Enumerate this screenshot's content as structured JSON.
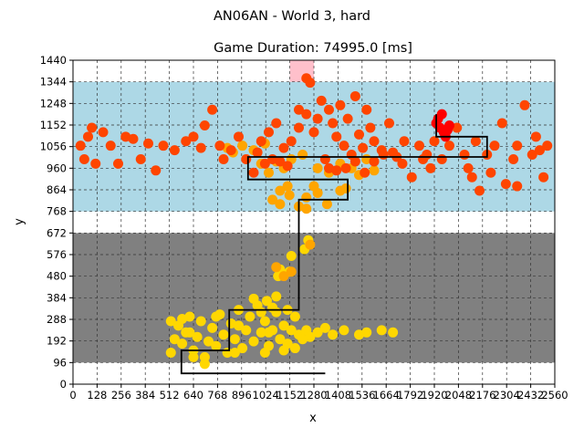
{
  "figure": {
    "suptitle": "AN06AN - World 3, hard"
  },
  "chart_data": {
    "type": "scatter",
    "title": "Game Duration: 74995.0 [ms]",
    "xlabel": "x",
    "ylabel": "y",
    "xlim": [
      0,
      2560
    ],
    "ylim": [
      0,
      1440
    ],
    "x_ticks": [
      0,
      128,
      256,
      384,
      512,
      640,
      768,
      896,
      1024,
      1152,
      1280,
      1408,
      1536,
      1664,
      1792,
      1920,
      2048,
      2176,
      2304,
      2432,
      2560
    ],
    "y_ticks": [
      0,
      96,
      192,
      288,
      384,
      480,
      576,
      672,
      768,
      864,
      960,
      1056,
      1152,
      1248,
      1344,
      1440
    ],
    "grid": true,
    "grid_style": "dashed",
    "regions": [
      {
        "name": "lower-zone",
        "y_range": [
          96,
          672
        ],
        "color": "#808080"
      },
      {
        "name": "upper-zone",
        "y_range": [
          768,
          1344
        ],
        "color": "#add8e6"
      },
      {
        "name": "goal-zone",
        "x_range": [
          1152,
          1280
        ],
        "y_range": [
          1344,
          1440
        ],
        "color": "#ffc0cb"
      }
    ],
    "path": {
      "color": "#000000",
      "points": [
        [
          1340,
          48
        ],
        [
          576,
          48
        ],
        [
          576,
          150
        ],
        [
          830,
          150
        ],
        [
          830,
          330
        ],
        [
          1200,
          330
        ],
        [
          1200,
          820
        ],
        [
          1460,
          820
        ],
        [
          1460,
          910
        ],
        [
          930,
          910
        ],
        [
          930,
          1010
        ],
        [
          2200,
          1010
        ],
        [
          2200,
          1100
        ],
        [
          1930,
          1100
        ],
        [
          1930,
          1200
        ]
      ]
    },
    "series": [
      {
        "color": "#ffd700",
        "points": [
          [
            520,
            140
          ],
          [
            540,
            200
          ],
          [
            560,
            260
          ],
          [
            580,
            180
          ],
          [
            600,
            230
          ],
          [
            620,
            300
          ],
          [
            640,
            150
          ],
          [
            660,
            210
          ],
          [
            680,
            280
          ],
          [
            700,
            120
          ],
          [
            720,
            190
          ],
          [
            740,
            250
          ],
          [
            760,
            170
          ],
          [
            780,
            310
          ],
          [
            800,
            220
          ],
          [
            820,
            140
          ],
          [
            840,
            270
          ],
          [
            860,
            200
          ],
          [
            880,
            330
          ],
          [
            900,
            160
          ],
          [
            920,
            240
          ],
          [
            940,
            300
          ],
          [
            960,
            190
          ],
          [
            980,
            350
          ],
          [
            1000,
            230
          ],
          [
            1020,
            280
          ],
          [
            1040,
            170
          ],
          [
            1060,
            240
          ],
          [
            1080,
            320
          ],
          [
            1100,
            200
          ],
          [
            1120,
            260
          ],
          [
            1140,
            180
          ],
          [
            1160,
            240
          ],
          [
            1180,
            300
          ],
          [
            1200,
            220
          ],
          [
            1220,
            200
          ],
          [
            1240,
            240
          ],
          [
            1260,
            210
          ],
          [
            1300,
            230
          ],
          [
            1340,
            250
          ],
          [
            1380,
            220
          ],
          [
            1440,
            240
          ],
          [
            1520,
            220
          ],
          [
            1560,
            230
          ],
          [
            1640,
            240
          ],
          [
            1700,
            230
          ],
          [
            1090,
            480
          ],
          [
            1100,
            510
          ],
          [
            1150,
            500
          ],
          [
            1160,
            570
          ],
          [
            1230,
            600
          ],
          [
            1250,
            640
          ],
          [
            1080,
            390
          ],
          [
            1060,
            340
          ],
          [
            1140,
            330
          ],
          [
            520,
            280
          ],
          [
            580,
            290
          ],
          [
            640,
            120
          ],
          [
            700,
            90
          ],
          [
            760,
            300
          ],
          [
            860,
            140
          ],
          [
            1020,
            140
          ],
          [
            1120,
            150
          ],
          [
            1180,
            160
          ],
          [
            960,
            380
          ],
          [
            1000,
            320
          ],
          [
            1030,
            370
          ],
          [
            1040,
            230
          ],
          [
            880,
            260
          ],
          [
            620,
            230
          ]
        ]
      },
      {
        "color": "#ffa500",
        "points": [
          [
            1060,
            820
          ],
          [
            1100,
            800
          ],
          [
            1150,
            840
          ],
          [
            1200,
            790
          ],
          [
            1240,
            830
          ],
          [
            1300,
            850
          ],
          [
            1350,
            800
          ],
          [
            1420,
            860
          ],
          [
            1450,
            870
          ],
          [
            1100,
            860
          ],
          [
            1140,
            880
          ],
          [
            1280,
            880
          ],
          [
            1240,
            780
          ],
          [
            1080,
            520
          ],
          [
            1120,
            480
          ],
          [
            1160,
            500
          ],
          [
            1260,
            620
          ],
          [
            1000,
            980
          ],
          [
            1040,
            940
          ],
          [
            1080,
            990
          ],
          [
            1120,
            960
          ],
          [
            1160,
            1000
          ],
          [
            1220,
            1020
          ],
          [
            1300,
            960
          ],
          [
            1360,
            940
          ],
          [
            1420,
            980
          ],
          [
            1480,
            960
          ],
          [
            1520,
            930
          ],
          [
            1560,
            1000
          ],
          [
            1600,
            950
          ],
          [
            900,
            1060
          ],
          [
            960,
            1040
          ],
          [
            1020,
            1070
          ],
          [
            820,
            1050
          ],
          [
            850,
            1030
          ]
        ]
      },
      {
        "color": "#ff4500",
        "points": [
          [
            40,
            1060
          ],
          [
            60,
            1000
          ],
          [
            80,
            1100
          ],
          [
            100,
            1140
          ],
          [
            120,
            980
          ],
          [
            160,
            1120
          ],
          [
            200,
            1060
          ],
          [
            240,
            980
          ],
          [
            280,
            1100
          ],
          [
            320,
            1090
          ],
          [
            360,
            1000
          ],
          [
            400,
            1070
          ],
          [
            440,
            950
          ],
          [
            480,
            1060
          ],
          [
            540,
            1040
          ],
          [
            600,
            1080
          ],
          [
            640,
            1100
          ],
          [
            680,
            1050
          ],
          [
            700,
            1150
          ],
          [
            740,
            1220
          ],
          [
            780,
            1060
          ],
          [
            800,
            1000
          ],
          [
            840,
            1040
          ],
          [
            880,
            1100
          ],
          [
            920,
            1000
          ],
          [
            960,
            940
          ],
          [
            1000,
            1080
          ],
          [
            1040,
            1120
          ],
          [
            1080,
            1160
          ],
          [
            1120,
            1050
          ],
          [
            1160,
            1080
          ],
          [
            1200,
            1140
          ],
          [
            1240,
            1200
          ],
          [
            1280,
            1120
          ],
          [
            1300,
            1180
          ],
          [
            1320,
            1260
          ],
          [
            1360,
            1220
          ],
          [
            1380,
            1160
          ],
          [
            1400,
            1100
          ],
          [
            1420,
            1240
          ],
          [
            1440,
            1060
          ],
          [
            1460,
            1180
          ],
          [
            1480,
            1020
          ],
          [
            1500,
            1280
          ],
          [
            1520,
            1110
          ],
          [
            1540,
            1050
          ],
          [
            1560,
            1220
          ],
          [
            1580,
            1140
          ],
          [
            1600,
            1080
          ],
          [
            1640,
            1040
          ],
          [
            1680,
            1160
          ],
          [
            1720,
            1010
          ],
          [
            1760,
            1080
          ],
          [
            1800,
            920
          ],
          [
            1840,
            1060
          ],
          [
            1880,
            1020
          ],
          [
            1920,
            1080
          ],
          [
            1960,
            1000
          ],
          [
            2000,
            1060
          ],
          [
            2040,
            1140
          ],
          [
            2080,
            1020
          ],
          [
            2100,
            960
          ],
          [
            2140,
            1080
          ],
          [
            2160,
            860
          ],
          [
            2200,
            1020
          ],
          [
            2240,
            1060
          ],
          [
            2280,
            1160
          ],
          [
            2300,
            890
          ],
          [
            2340,
            1000
          ],
          [
            2360,
            1060
          ],
          [
            2400,
            1240
          ],
          [
            2440,
            1020
          ],
          [
            2460,
            1100
          ],
          [
            2480,
            1040
          ],
          [
            2500,
            920
          ],
          [
            2520,
            1060
          ],
          [
            2360,
            880
          ],
          [
            2220,
            940
          ],
          [
            2120,
            920
          ],
          [
            1240,
            1360
          ],
          [
            1260,
            1340
          ],
          [
            1200,
            1220
          ],
          [
            1340,
            1000
          ],
          [
            1360,
            960
          ],
          [
            1400,
            950
          ],
          [
            1450,
            960
          ],
          [
            1500,
            990
          ],
          [
            1550,
            940
          ],
          [
            1600,
            990
          ],
          [
            1650,
            1020
          ],
          [
            1700,
            1030
          ],
          [
            1750,
            980
          ],
          [
            1860,
            1000
          ],
          [
            1900,
            960
          ],
          [
            980,
            1030
          ],
          [
            1020,
            980
          ],
          [
            1060,
            1000
          ],
          [
            1100,
            990
          ],
          [
            1140,
            970
          ]
        ]
      },
      {
        "color": "#ff0000",
        "points": [
          [
            1940,
            1180
          ],
          [
            1950,
            1140
          ],
          [
            1960,
            1200
          ],
          [
            1930,
            1160
          ],
          [
            1970,
            1120
          ],
          [
            1990,
            1130
          ],
          [
            2000,
            1150
          ],
          [
            1980,
            1100
          ]
        ]
      }
    ]
  }
}
